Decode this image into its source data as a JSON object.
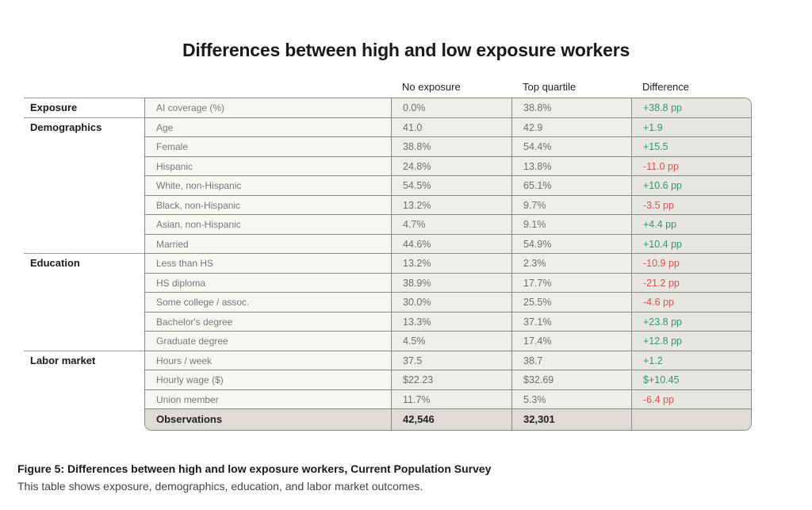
{
  "title": "Differences between high and low exposure workers",
  "caption": "Figure 5: Differences between high and low exposure workers, Current Population Survey",
  "subcaption": "This table shows exposure, demographics, education, and labor market outcomes.",
  "colors": {
    "positive": "#2e9a6a",
    "negative": "#d9534f"
  },
  "chart_data": {
    "type": "table",
    "columns": [
      "No exposure",
      "Top quartile",
      "Difference"
    ],
    "sections": [
      {
        "name": "Exposure",
        "rows": [
          {
            "label": "AI coverage (%)",
            "no_exposure": "0.0%",
            "top_quartile": "38.8%",
            "difference": "+38.8 pp"
          }
        ]
      },
      {
        "name": "Demographics",
        "rows": [
          {
            "label": "Age",
            "no_exposure": "41.0",
            "top_quartile": "42.9",
            "difference": "+1.9"
          },
          {
            "label": "Female",
            "no_exposure": "38.8%",
            "top_quartile": "54.4%",
            "difference": "+15.5"
          },
          {
            "label": "Hispanic",
            "no_exposure": "24.8%",
            "top_quartile": "13.8%",
            "difference": "-11.0 pp"
          },
          {
            "label": "White, non-Hispanic",
            "no_exposure": "54.5%",
            "top_quartile": "65.1%",
            "difference": "+10.6 pp"
          },
          {
            "label": "Black, non-Hispanic",
            "no_exposure": "13.2%",
            "top_quartile": "9.7%",
            "difference": "-3.5 pp"
          },
          {
            "label": "Asian, non-Hispanic",
            "no_exposure": "4.7%",
            "top_quartile": "9.1%",
            "difference": "+4.4 pp"
          },
          {
            "label": "Married",
            "no_exposure": "44.6%",
            "top_quartile": "54.9%",
            "difference": "+10.4 pp"
          }
        ]
      },
      {
        "name": "Education",
        "rows": [
          {
            "label": "Less than HS",
            "no_exposure": "13.2%",
            "top_quartile": "2.3%",
            "difference": "-10.9 pp"
          },
          {
            "label": "HS diploma",
            "no_exposure": "38.9%",
            "top_quartile": "17.7%",
            "difference": "-21.2 pp"
          },
          {
            "label": "Some college / assoc.",
            "no_exposure": "30.0%",
            "top_quartile": "25.5%",
            "difference": "-4.6 pp"
          },
          {
            "label": "Bachelor's degree",
            "no_exposure": "13.3%",
            "top_quartile": "37.1%",
            "difference": "+23.8 pp"
          },
          {
            "label": "Graduate degree",
            "no_exposure": "4.5%",
            "top_quartile": "17.4%",
            "difference": "+12.8 pp"
          }
        ]
      },
      {
        "name": "Labor market",
        "rows": [
          {
            "label": "Hours / week",
            "no_exposure": "37.5",
            "top_quartile": "38.7",
            "difference": "+1.2"
          },
          {
            "label": "Hourly wage ($)",
            "no_exposure": "$22.23",
            "top_quartile": "$32.69",
            "difference": "$+10.45"
          },
          {
            "label": "Union member",
            "no_exposure": "11.7%",
            "top_quartile": "5.3%",
            "difference": "-6.4 pp"
          }
        ]
      }
    ],
    "footer": {
      "label": "Observations",
      "no_exposure": "42,546",
      "top_quartile": "32,301",
      "difference": ""
    }
  }
}
